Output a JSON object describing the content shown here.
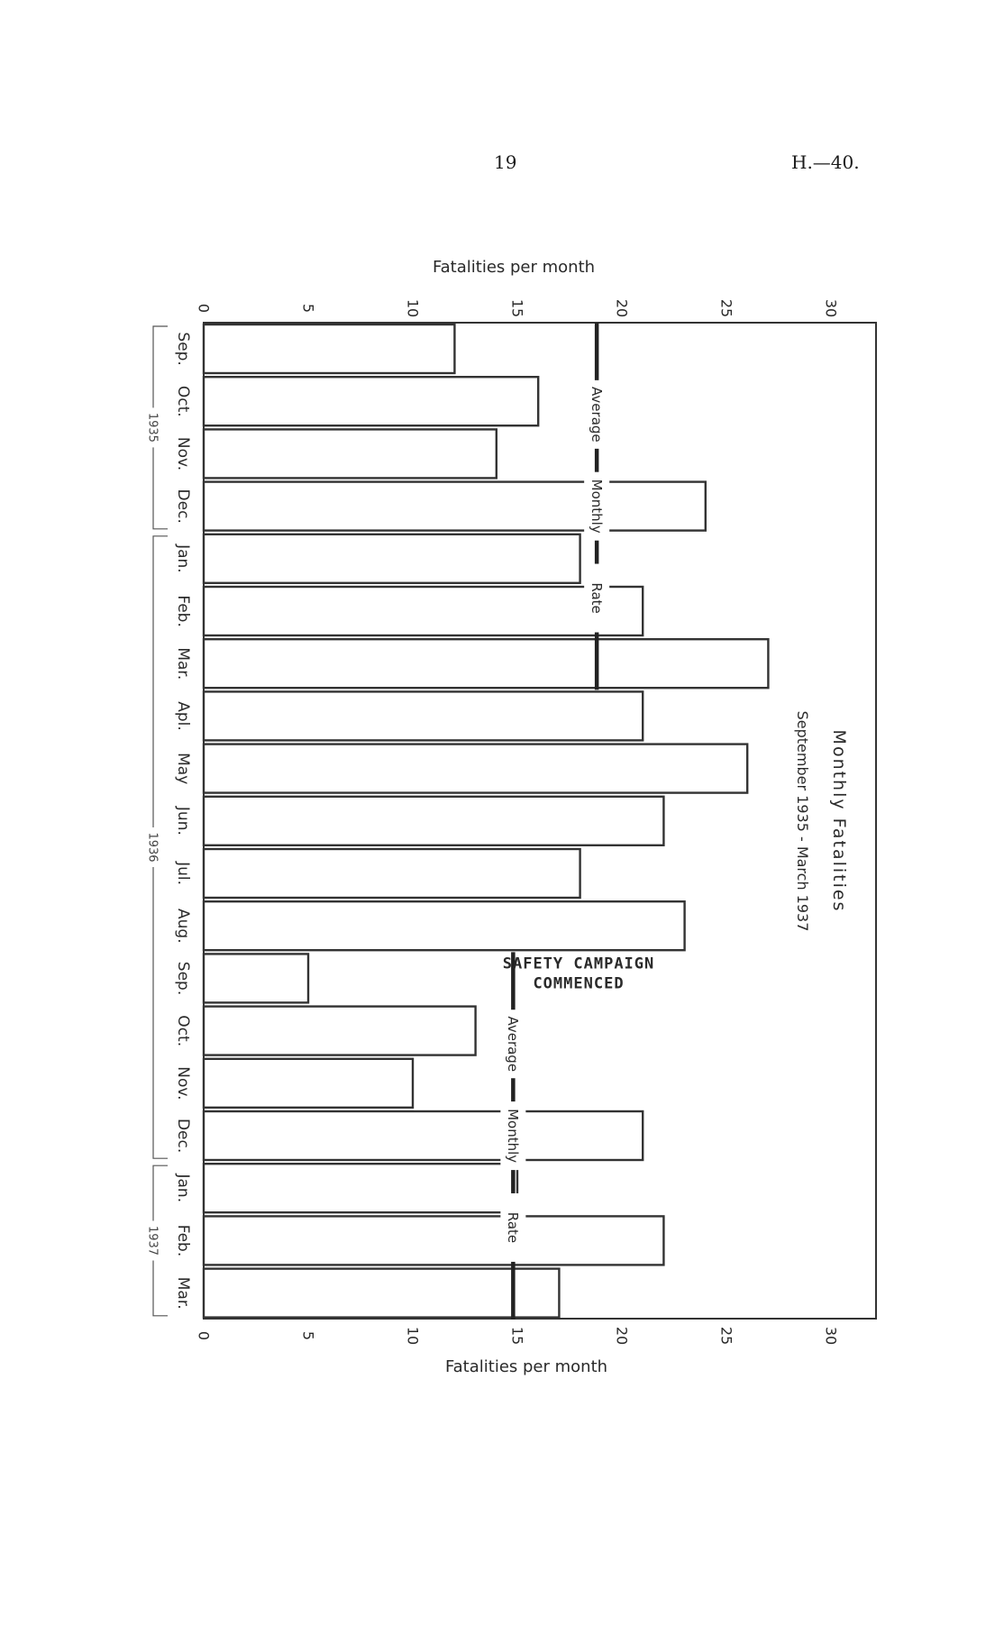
{
  "page": {
    "number": "19",
    "doc_ref": "H.—40."
  },
  "chart_data": {
    "type": "bar",
    "orientation": "horizontal",
    "title": "Monthly Fatalities",
    "subtitle": "September 1935 - March 1937",
    "axis_label_top": "Fatalities per month",
    "axis_label_bottom": "Fatalities per month",
    "xlim": [
      0,
      30
    ],
    "ticks": [
      0,
      5,
      10,
      15,
      20,
      25,
      30
    ],
    "categories": [
      "Sep.",
      "Oct.",
      "Nov.",
      "Dec.",
      "Jan.",
      "Feb.",
      "Mar.",
      "Apl.",
      "May",
      "Jun.",
      "Jul.",
      "Aug.",
      "Sep.",
      "Oct.",
      "Nov.",
      "Dec.",
      "Jan.",
      "Feb.",
      "Mar."
    ],
    "values": [
      12,
      16,
      14,
      24,
      18,
      21,
      27,
      21,
      26,
      22,
      18,
      23,
      5,
      13,
      10,
      21,
      15,
      22,
      17
    ],
    "year_groups": [
      {
        "label": "1935",
        "start": 0,
        "end": 3
      },
      {
        "label": "1936",
        "start": 4,
        "end": 15
      },
      {
        "label": "1937",
        "start": 16,
        "end": 18
      }
    ],
    "averages": [
      {
        "value": 18.8,
        "start": 0,
        "end": 6,
        "label_words": [
          "Average",
          "Monthly",
          "Rate"
        ]
      },
      {
        "value": 14.8,
        "start": 12,
        "end": 18,
        "label_words": [
          "Average",
          "Monthly",
          "Rate"
        ]
      }
    ],
    "annotation": {
      "lines": [
        "SAFETY CAMPAIGN",
        "COMMENCED"
      ],
      "at_index": 12
    },
    "grid": false,
    "legend": "none"
  }
}
